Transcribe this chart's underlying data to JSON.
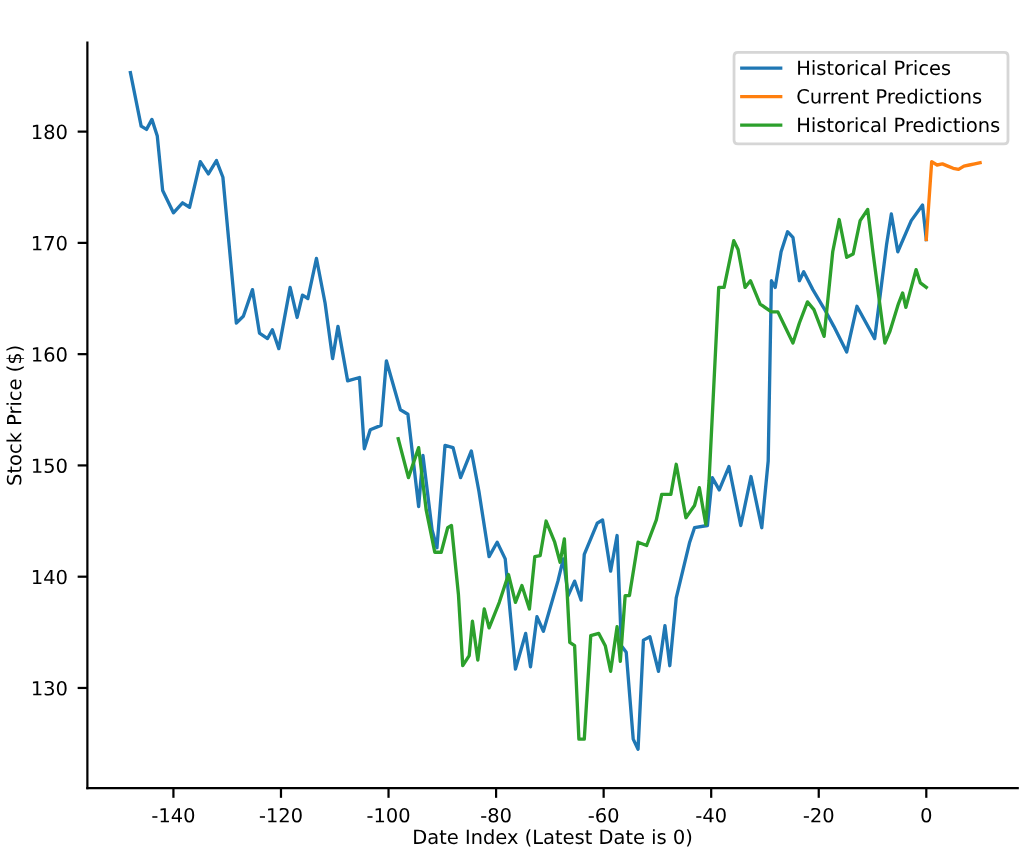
{
  "chart_data": {
    "type": "line",
    "xlabel": "Date Index (Latest Date is 0)",
    "ylabel": "Stock Price ($)",
    "xlim": [
      -156,
      17
    ],
    "ylim": [
      121,
      188
    ],
    "xticks": [
      -140,
      -120,
      -100,
      -80,
      -60,
      -40,
      -20,
      0
    ],
    "yticks": [
      130,
      140,
      150,
      160,
      170,
      180
    ],
    "grid": false,
    "legend": "top right",
    "line_style": "solid",
    "marker": "none",
    "series": [
      {
        "name": "Historical Prices",
        "color": "#1f77b4",
        "x": [
          -148,
          -146,
          -145,
          -144,
          -143,
          -142,
          -140,
          -138.3,
          -137,
          -135,
          -133.5,
          -132,
          -130.8,
          -128.3,
          -127,
          -125.3,
          -124,
          -122.5,
          -121.6,
          -120.4,
          -118.3,
          -117,
          -116,
          -115,
          -113.4,
          -111.8,
          -110.4,
          -109.4,
          -107.6,
          -105.4,
          -104.5,
          -103.4,
          -101.4,
          -100.4,
          -97.8,
          -96.4,
          -94.4,
          -93.6,
          -91.9,
          -91,
          -89.5,
          -88,
          -86.6,
          -84.6,
          -83.2,
          -81.3,
          -79.8,
          -78.3,
          -76.4,
          -74.5,
          -73.6,
          -72.4,
          -71.2,
          -68.5,
          -67.5,
          -66.6,
          -65.4,
          -64.2,
          -63.6,
          -61.2,
          -60.2,
          -58.7,
          -57.5,
          -56.7,
          -55.8,
          -54.5,
          -53.6,
          -52.6,
          -51.4,
          -49.8,
          -48.6,
          -47.7,
          -46.5,
          -44,
          -43.1,
          -40.7,
          -39.8,
          -38.5,
          -36.7,
          -34.5,
          -32.6,
          -30.6,
          -29.4,
          -28.8,
          -28.1,
          -27,
          -25.8,
          -24.8,
          -23.6,
          -22.8,
          -21.1,
          -19,
          -17.2,
          -14.8,
          -12.9,
          -9.6,
          -7.4,
          -6.5,
          -5.3,
          -2.8,
          -0.7,
          0
        ],
        "values": [
          185.3,
          180.5,
          180.2,
          181.1,
          179.6,
          174.7,
          172.7,
          173.6,
          173.2,
          177.3,
          176.2,
          177.4,
          175.9,
          162.8,
          163.4,
          165.8,
          161.9,
          161.4,
          162.2,
          160.5,
          166,
          163.3,
          165.3,
          165,
          168.6,
          164.6,
          159.6,
          162.5,
          157.6,
          157.9,
          151.5,
          153.2,
          153.6,
          159.4,
          155,
          154.6,
          146.3,
          150.9,
          144.2,
          142.6,
          151.8,
          151.6,
          148.9,
          151.3,
          147.7,
          141.8,
          143.1,
          141.6,
          131.7,
          134.9,
          131.9,
          136.4,
          135.1,
          139.6,
          141.6,
          138.3,
          139.6,
          137.9,
          142,
          144.8,
          145.1,
          140.5,
          143.7,
          133.8,
          133.2,
          125.4,
          124.5,
          134.3,
          134.6,
          131.5,
          135.6,
          132,
          138.1,
          143.1,
          144.4,
          144.6,
          148.9,
          147.8,
          149.9,
          144.6,
          149,
          144.4,
          150.4,
          166.6,
          166,
          169.2,
          171,
          170.5,
          166.6,
          167.4,
          165.8,
          164.1,
          162.5,
          160.2,
          164.3,
          161.4,
          169.8,
          172.6,
          169.2,
          172,
          173.4,
          170.3
        ]
      },
      {
        "name": "Current Predictions",
        "color": "#ff7f0e",
        "x": [
          0,
          1,
          2,
          3,
          4,
          5,
          6,
          7,
          8,
          9,
          10
        ],
        "values": [
          170.3,
          177.3,
          177,
          177.1,
          176.9,
          176.7,
          176.6,
          176.9,
          177,
          177.1,
          177.2
        ]
      },
      {
        "name": "Historical Predictions",
        "color": "#2ca02c",
        "x": [
          -98.2,
          -96.3,
          -94.4,
          -93,
          -91.4,
          -90.2,
          -89,
          -88.3,
          -87,
          -86.2,
          -85,
          -84.4,
          -83.4,
          -82.2,
          -81.3,
          -79.4,
          -77.7,
          -76.4,
          -75.2,
          -73.8,
          -72.8,
          -71.8,
          -70.7,
          -69.1,
          -68.1,
          -67.3,
          -66.3,
          -65.4,
          -64.6,
          -63.6,
          -62.4,
          -60.9,
          -59.7,
          -58.7,
          -57.5,
          -56.9,
          -56,
          -55.2,
          -53.6,
          -52,
          -50.2,
          -49.2,
          -47.5,
          -46.5,
          -44.7,
          -43.1,
          -42.2,
          -41,
          -40.4,
          -38.6,
          -37.6,
          -35.8,
          -35,
          -33.7,
          -32.7,
          -30.9,
          -28.8,
          -27.6,
          -26.4,
          -24.8,
          -23.6,
          -22.1,
          -20.9,
          -19,
          -17.4,
          -16.2,
          -14.8,
          -13.6,
          -12.3,
          -10.9,
          -9.9,
          -7.7,
          -6.8,
          -5.2,
          -4.4,
          -3.8,
          -1.9,
          -1.1,
          0
        ],
        "values": [
          152.4,
          148.9,
          151.6,
          146,
          142.2,
          142.2,
          144.4,
          144.6,
          138.4,
          132,
          132.9,
          136,
          132.5,
          137.1,
          135.4,
          137.7,
          140.2,
          137.7,
          139.2,
          137.1,
          141.8,
          141.9,
          145,
          143.1,
          141.3,
          143.4,
          134.1,
          133.8,
          125.4,
          125.4,
          134.7,
          134.9,
          133.8,
          131.5,
          135.5,
          132.4,
          138.3,
          138.3,
          143.1,
          142.8,
          145.1,
          147.4,
          147.4,
          150.1,
          145.3,
          146.4,
          148,
          144.7,
          148.6,
          166,
          166,
          170.2,
          169.4,
          166,
          166.6,
          164.5,
          163.8,
          163.8,
          162.6,
          161,
          162.8,
          164.7,
          164,
          161.6,
          169.2,
          172.1,
          168.7,
          169,
          172,
          173,
          169.1,
          161,
          162,
          164.5,
          165.5,
          164.2,
          167.6,
          166.4,
          166
        ]
      }
    ]
  }
}
